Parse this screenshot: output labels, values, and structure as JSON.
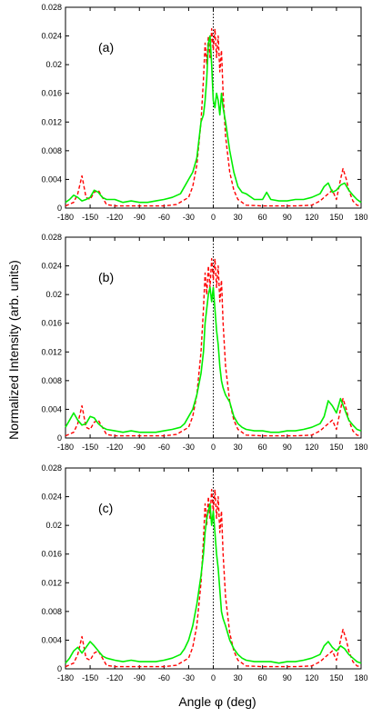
{
  "figure": {
    "ylabel": "Normalized Intensity  (arb. units)",
    "xlabel": "Angle φ  (deg)"
  },
  "chart_data": [
    {
      "type": "line",
      "panel_label": "(a)",
      "xlim": [
        -180,
        180
      ],
      "ylim": [
        0,
        0.028
      ],
      "x_ticks": [
        "-180",
        "-150",
        "-120",
        "-90",
        "-60",
        "-30",
        "0",
        "30",
        "60",
        "90",
        "120",
        "150",
        "180"
      ],
      "y_ticks": [
        "0",
        "0.004",
        "0.008",
        "0.012",
        "0.016",
        "0.02",
        "0.024",
        "0.028"
      ],
      "reference_line_x": 0,
      "series": [
        {
          "style": "dashed",
          "color": "#ff0000",
          "x": [
            -180,
            -170,
            -165,
            -160,
            -155,
            -150,
            -145,
            -140,
            -135,
            -130,
            -120,
            -100,
            -80,
            -60,
            -45,
            -30,
            -25,
            -20,
            -15,
            -12,
            -10,
            -8,
            -6,
            -4,
            -2,
            0,
            2,
            4,
            6,
            8,
            10,
            12,
            15,
            20,
            25,
            30,
            40,
            60,
            80,
            100,
            120,
            130,
            140,
            145,
            150,
            155,
            158,
            162,
            165,
            170,
            175,
            180
          ],
          "y": [
            0.0003,
            0.0008,
            0.002,
            0.0045,
            0.0015,
            0.0012,
            0.0022,
            0.0025,
            0.0015,
            0.0005,
            0.0003,
            0.0003,
            0.0003,
            0.0003,
            0.0005,
            0.0015,
            0.003,
            0.006,
            0.012,
            0.018,
            0.023,
            0.02,
            0.024,
            0.021,
            0.025,
            0.022,
            0.025,
            0.021,
            0.024,
            0.019,
            0.022,
            0.016,
            0.01,
            0.005,
            0.0025,
            0.0012,
            0.0004,
            0.0003,
            0.0003,
            0.0003,
            0.0004,
            0.001,
            0.002,
            0.0025,
            0.0012,
            0.004,
            0.0055,
            0.004,
            0.0025,
            0.001,
            0.0004,
            0.0003
          ]
        },
        {
          "style": "solid",
          "color": "#00ee00",
          "x": [
            -180,
            -175,
            -170,
            -165,
            -160,
            -155,
            -150,
            -145,
            -140,
            -135,
            -130,
            -120,
            -110,
            -100,
            -90,
            -80,
            -70,
            -60,
            -50,
            -40,
            -35,
            -30,
            -25,
            -20,
            -15,
            -12,
            -10,
            -8,
            -6,
            -4,
            -2,
            0,
            2,
            4,
            6,
            8,
            10,
            12,
            15,
            20,
            25,
            30,
            35,
            40,
            50,
            60,
            65,
            70,
            80,
            90,
            100,
            110,
            120,
            130,
            135,
            140,
            145,
            150,
            155,
            160,
            165,
            170,
            175,
            180
          ],
          "y": [
            0.0008,
            0.0012,
            0.0018,
            0.0015,
            0.001,
            0.0012,
            0.0015,
            0.0025,
            0.0022,
            0.0015,
            0.0012,
            0.0012,
            0.0008,
            0.001,
            0.0008,
            0.0008,
            0.001,
            0.0012,
            0.0015,
            0.002,
            0.003,
            0.004,
            0.005,
            0.007,
            0.012,
            0.013,
            0.015,
            0.018,
            0.023,
            0.024,
            0.02,
            0.015,
            0.014,
            0.016,
            0.015,
            0.013,
            0.016,
            0.014,
            0.012,
            0.008,
            0.005,
            0.003,
            0.0022,
            0.002,
            0.0012,
            0.0012,
            0.0022,
            0.0012,
            0.001,
            0.001,
            0.0012,
            0.0012,
            0.0015,
            0.002,
            0.003,
            0.0035,
            0.0022,
            0.0025,
            0.0032,
            0.0035,
            0.0025,
            0.0018,
            0.0012,
            0.0008
          ]
        }
      ]
    },
    {
      "type": "line",
      "panel_label": "(b)",
      "xlim": [
        -180,
        180
      ],
      "ylim": [
        0,
        0.028
      ],
      "x_ticks": [
        "-180",
        "-150",
        "-120",
        "-90",
        "-60",
        "-30",
        "0",
        "30",
        "60",
        "90",
        "120",
        "150",
        "180"
      ],
      "y_ticks": [
        "0",
        "0.004",
        "0.008",
        "0.012",
        "0.016",
        "0.02",
        "0.024",
        "0.028"
      ],
      "reference_line_x": 0,
      "series": [
        {
          "style": "dashed",
          "color": "#ff0000",
          "x": [
            -180,
            -170,
            -165,
            -160,
            -155,
            -150,
            -145,
            -140,
            -135,
            -130,
            -120,
            -100,
            -80,
            -60,
            -45,
            -30,
            -25,
            -20,
            -15,
            -12,
            -10,
            -8,
            -6,
            -4,
            -2,
            0,
            2,
            4,
            6,
            8,
            10,
            12,
            15,
            20,
            25,
            30,
            40,
            60,
            80,
            100,
            120,
            130,
            140,
            145,
            150,
            155,
            158,
            162,
            165,
            170,
            175,
            180
          ],
          "y": [
            0.0003,
            0.0008,
            0.002,
            0.0045,
            0.0015,
            0.0012,
            0.0022,
            0.0025,
            0.0015,
            0.0005,
            0.0003,
            0.0003,
            0.0003,
            0.0003,
            0.0005,
            0.0015,
            0.003,
            0.006,
            0.012,
            0.018,
            0.023,
            0.02,
            0.024,
            0.021,
            0.025,
            0.022,
            0.025,
            0.021,
            0.024,
            0.019,
            0.022,
            0.016,
            0.01,
            0.005,
            0.0025,
            0.0012,
            0.0004,
            0.0003,
            0.0003,
            0.0003,
            0.0004,
            0.001,
            0.002,
            0.0025,
            0.0012,
            0.004,
            0.0055,
            0.004,
            0.0025,
            0.001,
            0.0004,
            0.0003
          ]
        },
        {
          "style": "solid",
          "color": "#00ee00",
          "x": [
            -180,
            -175,
            -170,
            -165,
            -160,
            -155,
            -150,
            -145,
            -140,
            -135,
            -130,
            -120,
            -110,
            -100,
            -90,
            -80,
            -70,
            -60,
            -50,
            -40,
            -35,
            -30,
            -25,
            -20,
            -15,
            -12,
            -10,
            -8,
            -6,
            -4,
            -2,
            0,
            2,
            4,
            6,
            8,
            10,
            12,
            15,
            20,
            25,
            30,
            35,
            40,
            50,
            60,
            70,
            80,
            90,
            100,
            110,
            120,
            130,
            135,
            140,
            145,
            150,
            155,
            160,
            165,
            170,
            175,
            180
          ],
          "y": [
            0.0015,
            0.0025,
            0.0035,
            0.0025,
            0.0018,
            0.002,
            0.003,
            0.0028,
            0.002,
            0.0015,
            0.0012,
            0.001,
            0.0008,
            0.001,
            0.0008,
            0.0008,
            0.0008,
            0.001,
            0.0012,
            0.0015,
            0.002,
            0.003,
            0.004,
            0.006,
            0.009,
            0.012,
            0.016,
            0.018,
            0.02,
            0.021,
            0.019,
            0.021,
            0.018,
            0.015,
            0.013,
            0.01,
            0.008,
            0.007,
            0.006,
            0.005,
            0.003,
            0.002,
            0.0015,
            0.0012,
            0.001,
            0.001,
            0.0008,
            0.0008,
            0.001,
            0.001,
            0.0012,
            0.0015,
            0.002,
            0.003,
            0.0052,
            0.0045,
            0.0035,
            0.0055,
            0.004,
            0.0025,
            0.0018,
            0.0012,
            0.001
          ]
        }
      ]
    },
    {
      "type": "line",
      "panel_label": "(c)",
      "xlim": [
        -180,
        180
      ],
      "ylim": [
        0,
        0.028
      ],
      "x_ticks": [
        "-180",
        "-150",
        "-120",
        "-90",
        "-60",
        "-30",
        "0",
        "30",
        "60",
        "90",
        "120",
        "150",
        "180"
      ],
      "y_ticks": [
        "0",
        "0.004",
        "0.008",
        "0.012",
        "0.016",
        "0.02",
        "0.024",
        "0.028"
      ],
      "reference_line_x": 0,
      "series": [
        {
          "style": "dashed",
          "color": "#ff0000",
          "x": [
            -180,
            -170,
            -165,
            -160,
            -155,
            -150,
            -145,
            -140,
            -135,
            -130,
            -120,
            -100,
            -80,
            -60,
            -45,
            -30,
            -25,
            -20,
            -15,
            -12,
            -10,
            -8,
            -6,
            -4,
            -2,
            0,
            2,
            4,
            6,
            8,
            10,
            12,
            15,
            20,
            25,
            30,
            40,
            60,
            80,
            100,
            120,
            130,
            140,
            145,
            150,
            155,
            158,
            162,
            165,
            170,
            175,
            180
          ],
          "y": [
            0.0003,
            0.0008,
            0.002,
            0.0045,
            0.0015,
            0.0012,
            0.0022,
            0.0025,
            0.0015,
            0.0005,
            0.0003,
            0.0003,
            0.0003,
            0.0003,
            0.0005,
            0.0015,
            0.003,
            0.006,
            0.012,
            0.018,
            0.023,
            0.02,
            0.024,
            0.021,
            0.025,
            0.022,
            0.025,
            0.021,
            0.024,
            0.019,
            0.022,
            0.016,
            0.01,
            0.005,
            0.0025,
            0.0012,
            0.0004,
            0.0003,
            0.0003,
            0.0003,
            0.0004,
            0.001,
            0.002,
            0.0025,
            0.0012,
            0.004,
            0.0055,
            0.004,
            0.0025,
            0.001,
            0.0004,
            0.0003
          ]
        },
        {
          "style": "solid",
          "color": "#00ee00",
          "x": [
            -180,
            -175,
            -170,
            -165,
            -160,
            -155,
            -150,
            -145,
            -140,
            -135,
            -130,
            -120,
            -110,
            -100,
            -90,
            -80,
            -70,
            -60,
            -50,
            -40,
            -35,
            -30,
            -25,
            -20,
            -15,
            -12,
            -10,
            -8,
            -6,
            -4,
            -2,
            0,
            2,
            4,
            6,
            8,
            10,
            12,
            15,
            20,
            25,
            30,
            35,
            40,
            50,
            60,
            70,
            80,
            90,
            100,
            110,
            120,
            130,
            135,
            140,
            145,
            150,
            155,
            160,
            165,
            170,
            175,
            180
          ],
          "y": [
            0.0008,
            0.0015,
            0.0025,
            0.003,
            0.0022,
            0.003,
            0.0038,
            0.0032,
            0.0025,
            0.0018,
            0.0015,
            0.0012,
            0.001,
            0.0012,
            0.001,
            0.001,
            0.001,
            0.0012,
            0.0015,
            0.002,
            0.0028,
            0.004,
            0.006,
            0.009,
            0.013,
            0.016,
            0.019,
            0.021,
            0.022,
            0.023,
            0.02,
            0.022,
            0.019,
            0.016,
            0.014,
            0.011,
            0.008,
            0.007,
            0.006,
            0.004,
            0.0028,
            0.002,
            0.0015,
            0.0012,
            0.001,
            0.001,
            0.001,
            0.0008,
            0.001,
            0.001,
            0.0012,
            0.0015,
            0.002,
            0.0032,
            0.0038,
            0.003,
            0.0025,
            0.0032,
            0.0028,
            0.002,
            0.0015,
            0.001,
            0.0008
          ]
        }
      ]
    }
  ]
}
